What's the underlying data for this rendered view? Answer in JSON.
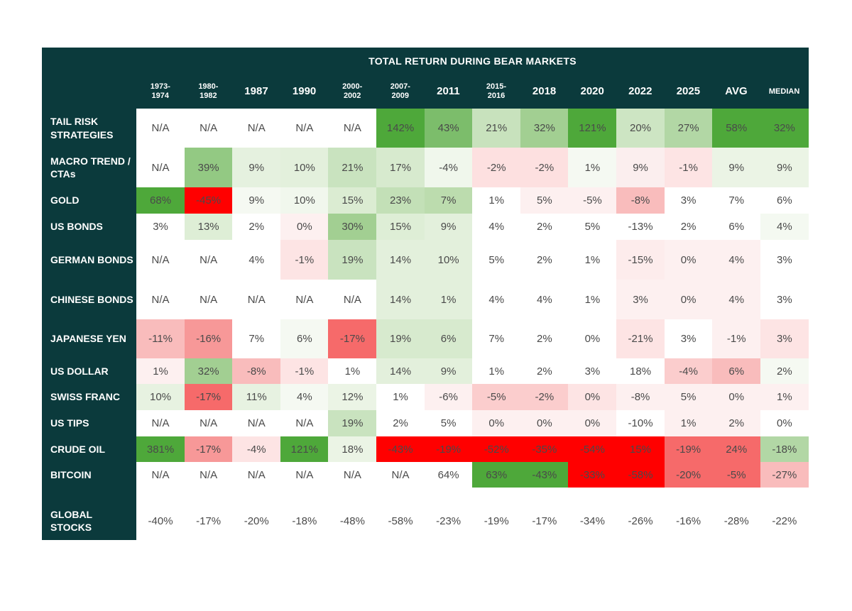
{
  "chart_data": {
    "type": "heatmap",
    "title": "TOTAL RETURN DURING BEAR MARKETS",
    "columns": [
      "1973-\n1974",
      "1980-\n1982",
      "1987",
      "1990",
      "2000-\n2002",
      "2007-\n2009",
      "2011",
      "2015-\n2016",
      "2018",
      "2020",
      "2022",
      "2025",
      "AVG",
      "MEDIAN"
    ],
    "rows": [
      {
        "label": "TAIL RISK STRATEGIES",
        "values": [
          "N/A",
          "N/A",
          "N/A",
          "N/A",
          "N/A",
          "142%",
          "43%",
          "21%",
          "32%",
          "121%",
          "20%",
          "27%",
          "58%",
          "32%"
        ]
      },
      {
        "label": "MACRO TREND / CTAs",
        "values": [
          "N/A",
          "39%",
          "9%",
          "10%",
          "21%",
          "17%",
          "-4%",
          "-2%",
          "-2%",
          "1%",
          "9%",
          "-1%",
          "9%",
          "9%"
        ]
      },
      {
        "label": "GOLD",
        "values": [
          "68%",
          "-45%",
          "9%",
          "10%",
          "15%",
          "23%",
          "7%",
          "1%",
          "5%",
          "-5%",
          "-8%",
          "3%",
          "7%",
          "6%"
        ]
      },
      {
        "label": "US BONDS",
        "values": [
          "3%",
          "13%",
          "2%",
          "0%",
          "30%",
          "15%",
          "9%",
          "4%",
          "2%",
          "5%",
          "-13%",
          "2%",
          "6%",
          "4%"
        ]
      },
      {
        "label": "GERMAN BONDS",
        "values": [
          "N/A",
          "N/A",
          "4%",
          "-1%",
          "19%",
          "14%",
          "10%",
          "5%",
          "2%",
          "1%",
          "-15%",
          "0%",
          "4%",
          "3%"
        ]
      },
      {
        "label": "CHINESE BONDS",
        "values": [
          "N/A",
          "N/A",
          "N/A",
          "N/A",
          "N/A",
          "14%",
          "1%",
          "4%",
          "4%",
          "1%",
          "3%",
          "0%",
          "4%",
          "3%"
        ]
      },
      {
        "label": "JAPANESE YEN",
        "values": [
          "-11%",
          "-16%",
          "7%",
          "6%",
          "-17%",
          "19%",
          "6%",
          "7%",
          "2%",
          "0%",
          "-21%",
          "3%",
          "-1%",
          "3%"
        ]
      },
      {
        "label": "US DOLLAR",
        "values": [
          "1%",
          "32%",
          "-8%",
          "-1%",
          "1%",
          "14%",
          "9%",
          "1%",
          "2%",
          "3%",
          "18%",
          "-4%",
          "6%",
          "2%"
        ]
      },
      {
        "label": "SWISS FRANC",
        "values": [
          "10%",
          "-17%",
          "11%",
          "4%",
          "12%",
          "1%",
          "-6%",
          "-5%",
          "-2%",
          "0%",
          "-8%",
          "5%",
          "0%",
          "1%"
        ]
      },
      {
        "label": "US TIPS",
        "values": [
          "N/A",
          "N/A",
          "N/A",
          "N/A",
          "19%",
          "2%",
          "5%",
          "0%",
          "0%",
          "0%",
          "-10%",
          "1%",
          "2%",
          "0%"
        ]
      },
      {
        "label": "CRUDE OIL",
        "values": [
          "381%",
          "-17%",
          "-4%",
          "121%",
          "18%",
          "-43%",
          "-19%",
          "-52%",
          "-35%",
          "-54%",
          "15%",
          "-19%",
          "24%",
          "-18%"
        ]
      },
      {
        "label": "BITCOIN",
        "values": [
          "N/A",
          "N/A",
          "N/A",
          "N/A",
          "N/A",
          "N/A",
          "64%",
          "63%",
          "-43%",
          "-33%",
          "-58%",
          "-20%",
          "-5%",
          "-27%"
        ]
      },
      {
        "label": "GLOBAL STOCKS",
        "values": [
          "-40%",
          "-17%",
          "-20%",
          "-18%",
          "-48%",
          "-58%",
          "-23%",
          "-19%",
          "-17%",
          "-34%",
          "-26%",
          "-16%",
          "-28%",
          "-22%"
        ]
      }
    ],
    "cell_colors": [
      [
        "#ffffff",
        "#ffffff",
        "#ffffff",
        "#ffffff",
        "#ffffff",
        "#4ea83a",
        "#7cbd6b",
        "#c8e2bd",
        "#a2cf92",
        "#4ea83a",
        "#cde5c3",
        "#b2d7a5",
        "#4ea83a",
        "#4ea83a"
      ],
      [
        "#ffffff",
        "#93c983",
        "#e5f1df",
        "#e3f0dc",
        "#c9e3bf",
        "#d7eace",
        "#f0f7ec",
        "#fde0e0",
        "#fde0e0",
        "#f5f9f2",
        "#fbeeee",
        "#fde4e4",
        "#ebf4e5",
        "#ebf4e5"
      ],
      [
        "#4ea83a",
        "#ff0000",
        "#f5f9f2",
        "#f1f7ed",
        "#dbecd2",
        "#c3e0b7",
        "#bcdcae",
        "#ffffff",
        "#fdf0f0",
        "#fdf0f0",
        "#f9bcbc",
        "#ffffff",
        "#ffffff",
        "#ffffff"
      ],
      [
        "#ffffff",
        "#deeed6",
        "#ffffff",
        "#fdf0f0",
        "#a2cf92",
        "#deeed6",
        "#e3f0dc",
        "#ffffff",
        "#ffffff",
        "#ffffff",
        "#ffffff",
        "#ffffff",
        "#ffffff",
        "#f4f9f1"
      ],
      [
        "#ffffff",
        "#ffffff",
        "#ffffff",
        "#fde4e4",
        "#c9e3bf",
        "#e3f0dc",
        "#e3f0dc",
        "#ffffff",
        "#ffffff",
        "#ffffff",
        "#fdecec",
        "#fdf0f0",
        "#fdf0f0",
        "#ffffff"
      ],
      [
        "#ffffff",
        "#ffffff",
        "#ffffff",
        "#ffffff",
        "#ffffff",
        "#e3f0dc",
        "#e3f0dc",
        "#ffffff",
        "#ffffff",
        "#ffffff",
        "#fdf0f0",
        "#fdf0f0",
        "#fdf0f0",
        "#ffffff"
      ],
      [
        "#f9bcbc",
        "#f79898",
        "#ffffff",
        "#f5f9f2",
        "#f66a6a",
        "#d7eace",
        "#d7eace",
        "#ffffff",
        "#ffffff",
        "#ffffff",
        "#fde4e4",
        "#ffffff",
        "#fdf0f0",
        "#fde4e4"
      ],
      [
        "#fdf0f0",
        "#a2cf92",
        "#f9bcbc",
        "#fde4e4",
        "#ffffff",
        "#e3f0dc",
        "#e3f0dc",
        "#ffffff",
        "#ffffff",
        "#ffffff",
        "#ffffff",
        "#fbcdcd",
        "#f9bcbc",
        "#f5f9f2"
      ],
      [
        "#e7f2e1",
        "#f66a6a",
        "#e7f2e1",
        "#f5f9f2",
        "#ebf4e5",
        "#ffffff",
        "#fdf0f0",
        "#fbcdcd",
        "#fbcdcd",
        "#fde4e4",
        "#fdf0f0",
        "#fdf0f0",
        "#fdf0f0",
        "#fdf0f0"
      ],
      [
        "#ffffff",
        "#ffffff",
        "#ffffff",
        "#ffffff",
        "#c9e3bf",
        "#ffffff",
        "#ffffff",
        "#fdf0f0",
        "#fdf0f0",
        "#fdf0f0",
        "#ffffff",
        "#fdf0f0",
        "#fdf0f0",
        "#ffffff"
      ],
      [
        "#4ea83a",
        "#f79898",
        "#fde4e4",
        "#4ea83a",
        "#ebf4e5",
        "#ff0000",
        "#ff0000",
        "#ff0000",
        "#ff0000",
        "#ff0000",
        "#ff0000",
        "#f66a6a",
        "#f66a6a",
        "#b2d7a5"
      ],
      [
        "#ffffff",
        "#ffffff",
        "#ffffff",
        "#ffffff",
        "#ffffff",
        "#ffffff",
        "#ffffff",
        "#4ea83a",
        "#4ea83a",
        "#ff0000",
        "#ff0000",
        "#f66a6a",
        "#f66a6a",
        "#f9bcbc"
      ],
      [
        "#ffffff",
        "#ffffff",
        "#ffffff",
        "#ffffff",
        "#ffffff",
        "#ffffff",
        "#ffffff",
        "#ffffff",
        "#ffffff",
        "#ffffff",
        "#ffffff",
        "#ffffff",
        "#ffffff",
        "#ffffff"
      ]
    ],
    "legend": "none",
    "grid": false
  },
  "colors": {
    "header_bg": "#0b3a3c",
    "header_text": "#ffffff",
    "cell_text": "#4a4a4a"
  }
}
